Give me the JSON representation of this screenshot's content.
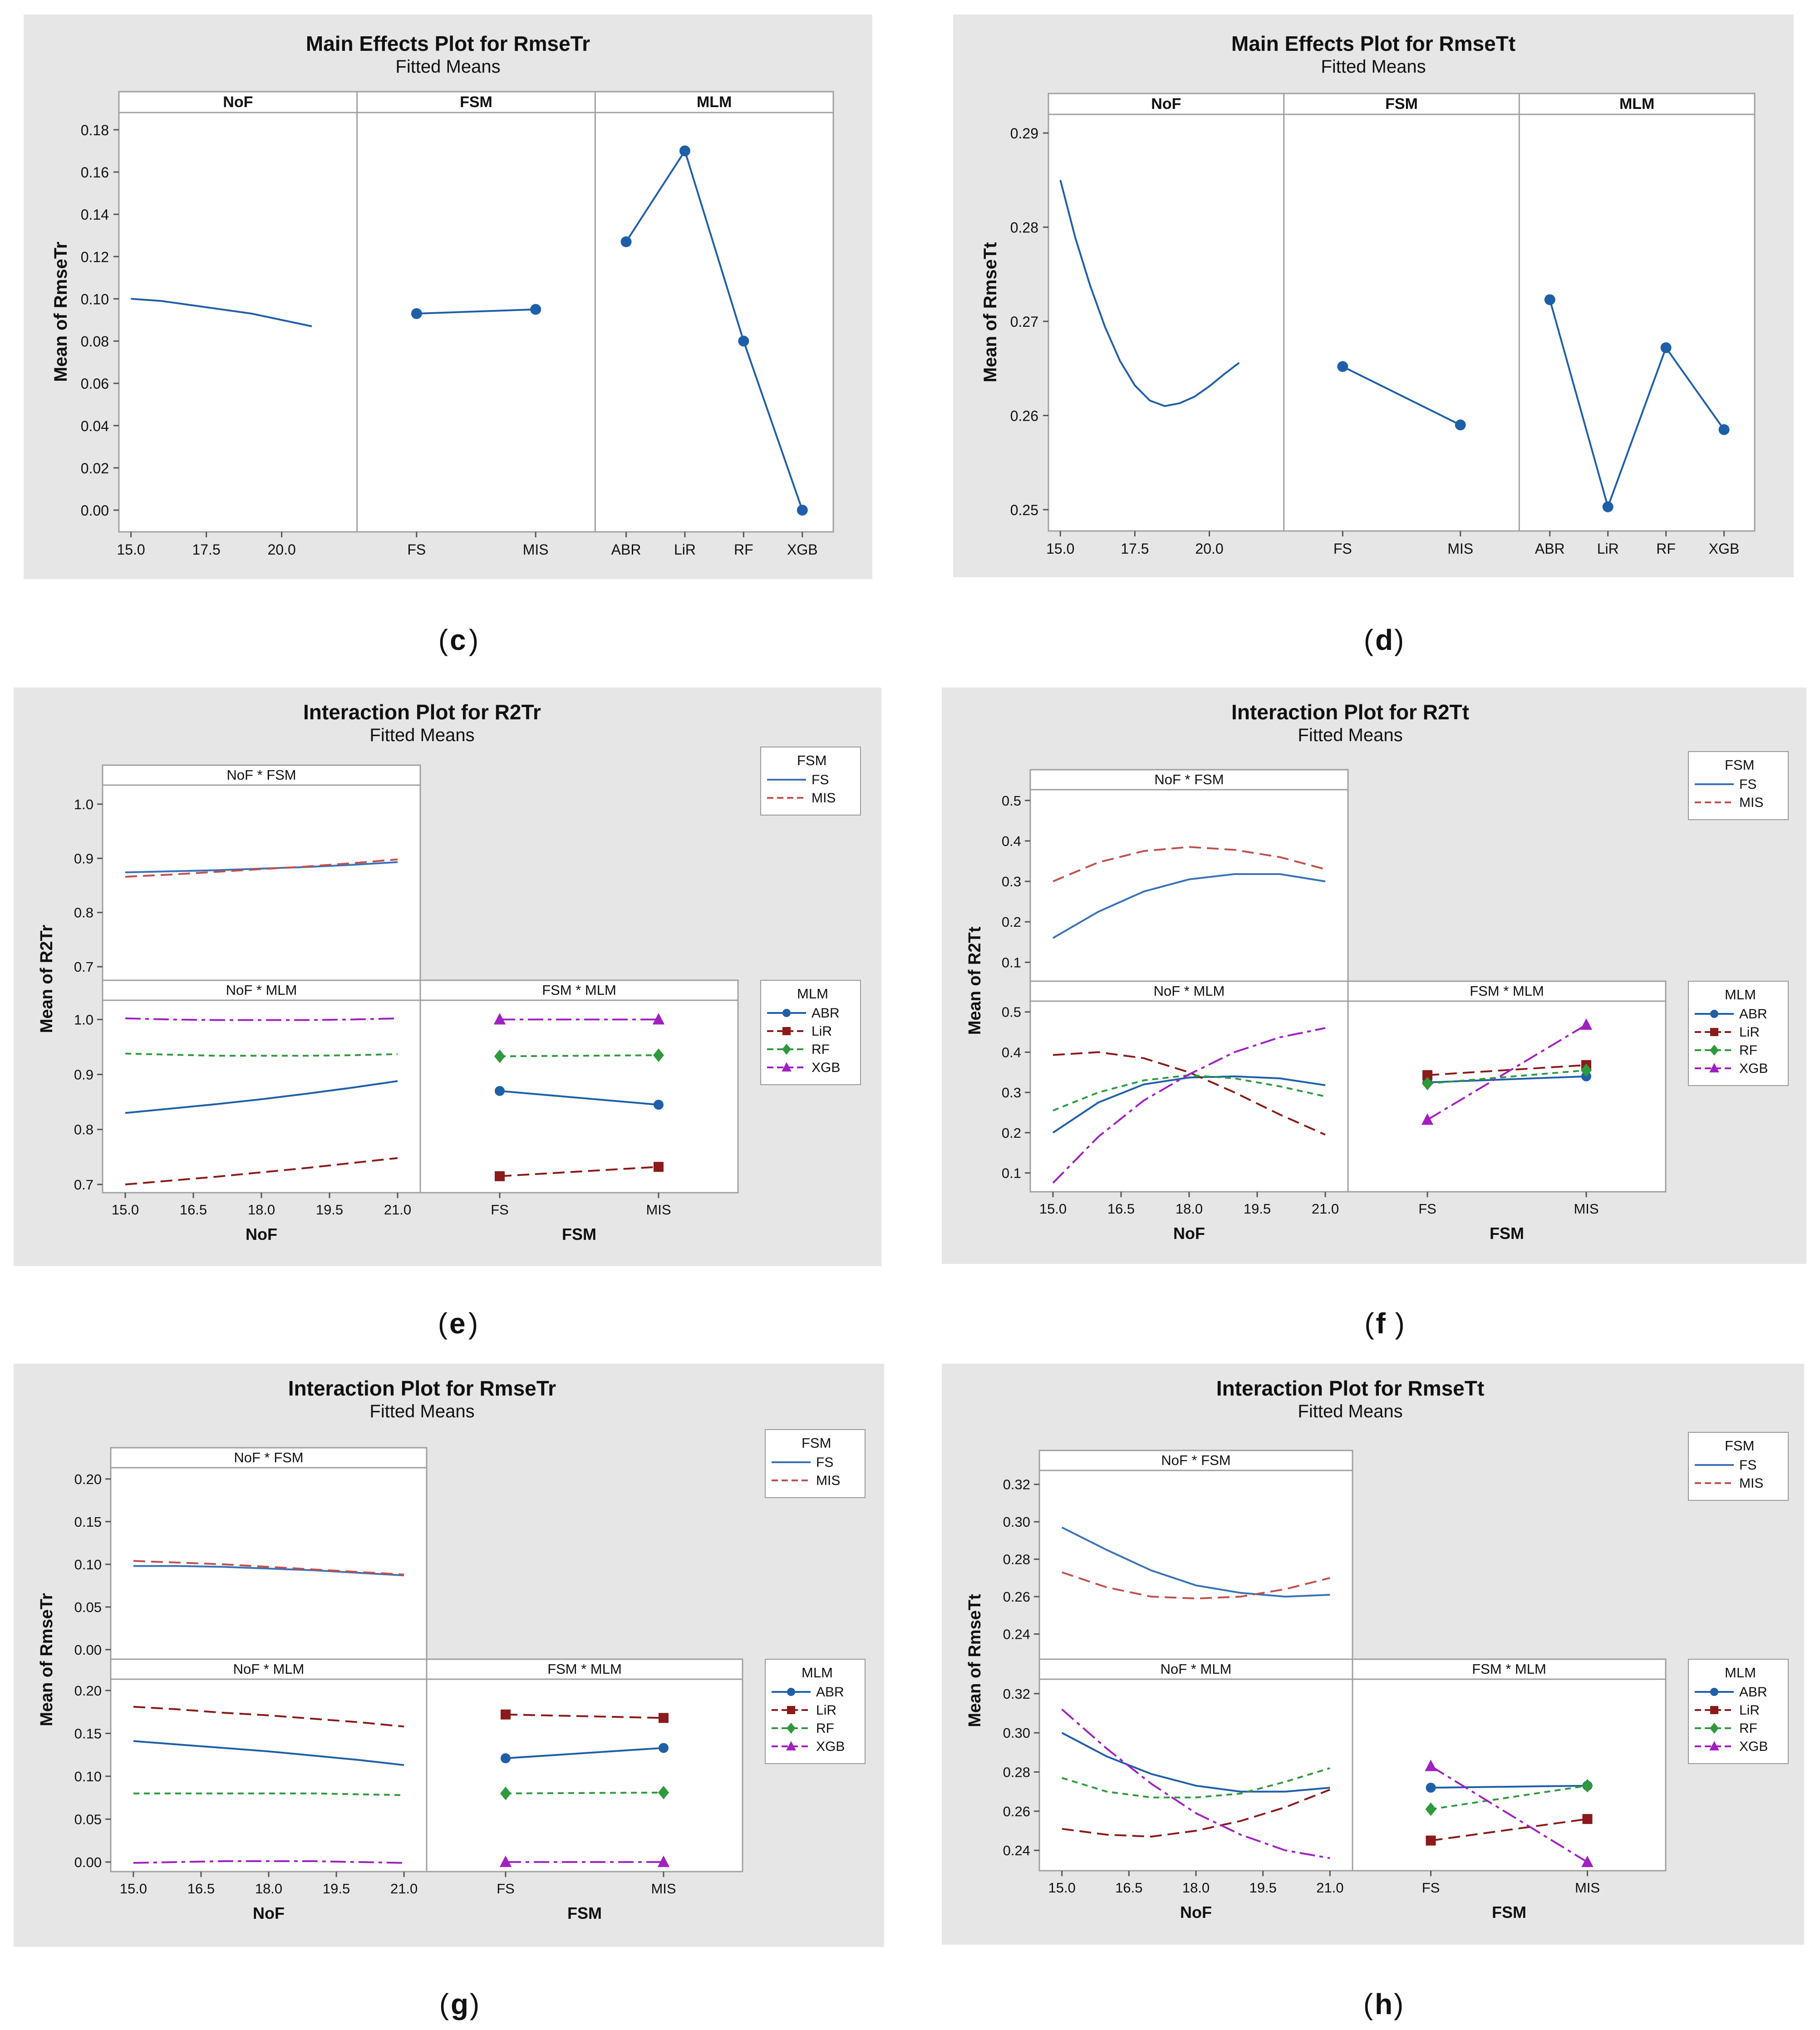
{
  "page": {
    "theme": {
      "background": "#e6e6e6",
      "plot_bg": "#ffffff",
      "frame": "#a0a0a0",
      "FS": "#3a72b8",
      "MIS": "#c0504d",
      "ABR": "#1f5fa8",
      "LiR": "#8b1a1a",
      "RF": "#2e9a3c",
      "XGB": "#a020c0",
      "main": "#1f5fa8"
    }
  },
  "chart_data": [
    {
      "id": "c",
      "type": "line",
      "kind": "main_effects",
      "title": "Main Effects Plot for RmseTr",
      "subtitle": "Fitted Means",
      "ylabel": "Mean of RmseTr",
      "ylim": [
        -0.006,
        0.186
      ],
      "yticks": [
        "0.00",
        "0.02",
        "0.04",
        "0.06",
        "0.08",
        "0.10",
        "0.12",
        "0.14",
        "0.16",
        "0.18"
      ],
      "caption_pre": "(",
      "caption": "c",
      "caption_post": ")",
      "panels": [
        {
          "label": "NoF",
          "continuous": true,
          "xlim": [
            14.6,
            22.5
          ],
          "xticks": [
            "15.0",
            "17.5",
            "20.0"
          ],
          "x": [
            15.0,
            16.0,
            17.0,
            18.0,
            19.0,
            20.0,
            21.0
          ],
          "y": [
            0.1,
            0.099,
            0.097,
            0.095,
            0.093,
            0.09,
            0.087
          ]
        },
        {
          "label": "FSM",
          "categories": [
            "FS",
            "MIS"
          ],
          "values": [
            0.093,
            0.095
          ]
        },
        {
          "label": "MLM",
          "categories": [
            "ABR",
            "LiR",
            "RF",
            "XGB"
          ],
          "values": [
            0.127,
            0.17,
            0.08,
            0.0
          ]
        }
      ]
    },
    {
      "id": "d",
      "type": "line",
      "kind": "main_effects",
      "title": "Main Effects Plot for RmseTt",
      "subtitle": "Fitted Means",
      "ylabel": "Mean of RmseTt",
      "ylim": [
        0.2487,
        0.2915
      ],
      "yticks": [
        "0.25",
        "0.26",
        "0.27",
        "0.28",
        "0.29"
      ],
      "caption_pre": "(",
      "caption": "d",
      "caption_post": ")",
      "panels": [
        {
          "label": "NoF",
          "continuous": true,
          "xlim": [
            14.6,
            22.5
          ],
          "xticks": [
            "15.0",
            "17.5",
            "20.0"
          ],
          "x": [
            15.0,
            15.5,
            16.0,
            16.5,
            17.0,
            17.5,
            18.0,
            18.5,
            19.0,
            19.5,
            20.0,
            20.5,
            21.0
          ],
          "y": [
            0.285,
            0.2789,
            0.2738,
            0.2694,
            0.2658,
            0.2632,
            0.2616,
            0.261,
            0.2613,
            0.262,
            0.2631,
            0.2644,
            0.2656
          ]
        },
        {
          "label": "FSM",
          "categories": [
            "FS",
            "MIS"
          ],
          "values": [
            0.2652,
            0.259
          ]
        },
        {
          "label": "MLM",
          "categories": [
            "ABR",
            "LiR",
            "RF",
            "XGB"
          ],
          "values": [
            0.2723,
            0.2503,
            0.2672,
            0.2585
          ]
        }
      ]
    },
    {
      "id": "e",
      "type": "line",
      "kind": "interaction",
      "title": "Interaction Plot for R2Tr",
      "subtitle": "Fitted Means",
      "ylabel": "Mean of R2Tr",
      "caption_pre": "(",
      "caption": "e",
      "caption_post": ")",
      "top": {
        "title": "NoF * FSM",
        "ylim": [
          0.68,
          1.03
        ],
        "yticks": [
          "0.7",
          "0.8",
          "0.9",
          "1.0"
        ],
        "ytickvals": [
          0.7,
          0.8,
          0.9,
          1.0
        ],
        "x": [
          15,
          16,
          17,
          18,
          19,
          20,
          21
        ],
        "series": [
          {
            "name": "FS",
            "values": [
              0.874,
              0.876,
              0.878,
              0.881,
              0.884,
              0.888,
              0.893
            ]
          },
          {
            "name": "MIS",
            "values": [
              0.866,
              0.87,
              0.875,
              0.88,
              0.885,
              0.891,
              0.898
            ]
          }
        ]
      },
      "bl": {
        "title": "NoF * MLM",
        "ylim": [
          0.69,
          1.03
        ],
        "yticks": [
          "0.7",
          "0.8",
          "0.9",
          "1.0"
        ],
        "ytickvals": [
          0.7,
          0.8,
          0.9,
          1.0
        ],
        "x": [
          15,
          16,
          17,
          18,
          19,
          20,
          21
        ],
        "series": [
          {
            "name": "ABR",
            "values": [
              0.83,
              0.838,
              0.846,
              0.855,
              0.865,
              0.876,
              0.888
            ]
          },
          {
            "name": "LiR",
            "values": [
              0.7,
              0.707,
              0.714,
              0.722,
              0.73,
              0.739,
              0.748
            ]
          },
          {
            "name": "RF",
            "values": [
              0.938,
              0.936,
              0.934,
              0.934,
              0.934,
              0.935,
              0.937
            ]
          },
          {
            "name": "XGB",
            "values": [
              1.002,
              1.0,
              0.999,
              0.999,
              0.999,
              1.0,
              1.002
            ]
          }
        ]
      },
      "br": {
        "title": "FSM * MLM",
        "ylim": [
          0.69,
          1.03
        ],
        "categories": [
          "FS",
          "MIS"
        ],
        "series": [
          {
            "name": "ABR",
            "values": [
              0.87,
              0.845
            ]
          },
          {
            "name": "LiR",
            "values": [
              0.715,
              0.732
            ]
          },
          {
            "name": "RF",
            "values": [
              0.933,
              0.935
            ]
          },
          {
            "name": "XGB",
            "values": [
              1.0,
              1.0
            ]
          }
        ]
      },
      "xaxis": {
        "noftitle": "NoF",
        "fsmtitle": "FSM",
        "xlim": [
          14.8,
          21.2
        ],
        "xticks": [
          "15.0",
          "16.5",
          "18.0",
          "19.5",
          "21.0"
        ],
        "xtickvals": [
          15.0,
          16.5,
          18.0,
          19.5,
          21.0
        ]
      },
      "legend_fsm": {
        "title": "FSM",
        "items": [
          "FS",
          "MIS"
        ]
      },
      "legend_mlm": {
        "title": "MLM",
        "items": [
          "ABR",
          "LiR",
          "RF",
          "XGB"
        ]
      }
    },
    {
      "id": "f",
      "type": "line",
      "kind": "interaction",
      "title": "Interaction Plot for R2Tt",
      "subtitle": "Fitted Means",
      "ylabel": "Mean of R2Tt",
      "caption_pre": "(",
      "caption": "f",
      "caption_post": ")",
      "top": {
        "title": "NoF * FSM",
        "ylim": [
          0.06,
          0.52
        ],
        "yticks": [
          "0.1",
          "0.2",
          "0.3",
          "0.4",
          "0.5"
        ],
        "ytickvals": [
          0.1,
          0.2,
          0.3,
          0.4,
          0.5
        ],
        "x": [
          15,
          16,
          17,
          18,
          19,
          20,
          21
        ],
        "series": [
          {
            "name": "FS",
            "values": [
              0.16,
              0.225,
              0.275,
              0.305,
              0.318,
              0.318,
              0.3
            ]
          },
          {
            "name": "MIS",
            "values": [
              0.3,
              0.347,
              0.375,
              0.385,
              0.378,
              0.36,
              0.33
            ]
          }
        ]
      },
      "bl": {
        "title": "NoF * MLM",
        "ylim": [
          0.06,
          0.52
        ],
        "yticks": [
          "0.1",
          "0.2",
          "0.3",
          "0.4",
          "0.5"
        ],
        "ytickvals": [
          0.1,
          0.2,
          0.3,
          0.4,
          0.5
        ],
        "x": [
          15,
          16,
          17,
          18,
          19,
          20,
          21
        ],
        "series": [
          {
            "name": "ABR",
            "values": [
              0.2,
              0.275,
              0.32,
              0.337,
              0.34,
              0.335,
              0.318
            ]
          },
          {
            "name": "LiR",
            "values": [
              0.393,
              0.4,
              0.385,
              0.35,
              0.3,
              0.245,
              0.195
            ]
          },
          {
            "name": "RF",
            "values": [
              0.255,
              0.3,
              0.33,
              0.343,
              0.335,
              0.315,
              0.29
            ]
          },
          {
            "name": "XGB",
            "values": [
              0.075,
              0.19,
              0.28,
              0.345,
              0.4,
              0.437,
              0.46
            ]
          }
        ]
      },
      "br": {
        "title": "FSM * MLM",
        "ylim": [
          0.06,
          0.52
        ],
        "categories": [
          "FS",
          "MIS"
        ],
        "series": [
          {
            "name": "ABR",
            "values": [
              0.325,
              0.34
            ]
          },
          {
            "name": "LiR",
            "values": [
              0.343,
              0.368
            ]
          },
          {
            "name": "RF",
            "values": [
              0.322,
              0.355
            ]
          },
          {
            "name": "XGB",
            "values": [
              0.232,
              0.468
            ]
          }
        ]
      },
      "xaxis": {
        "noftitle": "NoF",
        "fsmtitle": "FSM",
        "xlim": [
          14.8,
          21.2
        ],
        "xticks": [
          "15.0",
          "16.5",
          "18.0",
          "19.5",
          "21.0"
        ],
        "xtickvals": [
          15.0,
          16.5,
          18.0,
          19.5,
          21.0
        ]
      },
      "legend_fsm": {
        "title": "FSM",
        "items": [
          "FS",
          "MIS"
        ]
      },
      "legend_mlm": {
        "title": "MLM",
        "items": [
          "ABR",
          "LiR",
          "RF",
          "XGB"
        ]
      }
    },
    {
      "id": "g",
      "type": "line",
      "kind": "interaction",
      "title": "Interaction Plot for RmseTr",
      "subtitle": "Fitted Means",
      "ylabel": "Mean of RmseTr",
      "caption_pre": "(",
      "caption": "g",
      "caption_post": ")",
      "top": {
        "title": "NoF * FSM",
        "ylim": [
          -0.008,
          0.21
        ],
        "yticks": [
          "0.00",
          "0.05",
          "0.10",
          "0.15",
          "0.20"
        ],
        "ytickvals": [
          0,
          0.05,
          0.1,
          0.15,
          0.2
        ],
        "x": [
          15,
          16,
          17,
          18,
          19,
          20,
          21
        ],
        "series": [
          {
            "name": "FS",
            "values": [
              0.098,
              0.098,
              0.097,
              0.095,
              0.093,
              0.09,
              0.087
            ]
          },
          {
            "name": "MIS",
            "values": [
              0.104,
              0.102,
              0.1,
              0.097,
              0.094,
              0.091,
              0.088
            ]
          }
        ]
      },
      "bl": {
        "title": "NoF * MLM",
        "ylim": [
          -0.008,
          0.21
        ],
        "yticks": [
          "0.00",
          "0.05",
          "0.10",
          "0.15",
          "0.20"
        ],
        "ytickvals": [
          0,
          0.05,
          0.1,
          0.15,
          0.2
        ],
        "x": [
          15,
          16,
          17,
          18,
          19,
          20,
          21
        ],
        "series": [
          {
            "name": "ABR",
            "values": [
              0.141,
              0.137,
              0.133,
              0.129,
              0.124,
              0.119,
              0.113
            ]
          },
          {
            "name": "LiR",
            "values": [
              0.181,
              0.178,
              0.174,
              0.171,
              0.167,
              0.163,
              0.158
            ]
          },
          {
            "name": "RF",
            "values": [
              0.08,
              0.08,
              0.08,
              0.08,
              0.08,
              0.079,
              0.078
            ]
          },
          {
            "name": "XGB",
            "values": [
              -0.001,
              0.0,
              0.001,
              0.001,
              0.001,
              0.0,
              -0.001
            ]
          }
        ]
      },
      "br": {
        "title": "FSM * MLM",
        "ylim": [
          -0.008,
          0.21
        ],
        "categories": [
          "FS",
          "MIS"
        ],
        "series": [
          {
            "name": "ABR",
            "values": [
              0.121,
              0.133
            ]
          },
          {
            "name": "LiR",
            "values": [
              0.172,
              0.168
            ]
          },
          {
            "name": "RF",
            "values": [
              0.08,
              0.081
            ]
          },
          {
            "name": "XGB",
            "values": [
              0.0,
              0.0
            ]
          }
        ]
      },
      "xaxis": {
        "noftitle": "NoF",
        "fsmtitle": "FSM",
        "xlim": [
          14.8,
          21.2
        ],
        "xticks": [
          "15.0",
          "16.5",
          "18.0",
          "19.5",
          "21.0"
        ],
        "xtickvals": [
          15.0,
          16.5,
          18.0,
          19.5,
          21.0
        ]
      },
      "legend_fsm": {
        "title": "FSM",
        "items": [
          "FS",
          "MIS"
        ]
      },
      "legend_mlm": {
        "title": "MLM",
        "items": [
          "ABR",
          "LiR",
          "RF",
          "XGB"
        ]
      }
    },
    {
      "id": "h",
      "type": "line",
      "kind": "interaction",
      "title": "Interaction Plot for RmseTt",
      "subtitle": "Fitted Means",
      "ylabel": "Mean of RmseTt",
      "caption_pre": "(",
      "caption": "h",
      "caption_post": ")",
      "top": {
        "title": "NoF * FSM",
        "ylim": [
          0.228,
          0.326
        ],
        "yticks": [
          "0.24",
          "0.26",
          "0.28",
          "0.30",
          "0.32"
        ],
        "ytickvals": [
          0.24,
          0.26,
          0.28,
          0.3,
          0.32
        ],
        "x": [
          15,
          16,
          17,
          18,
          19,
          20,
          21
        ],
        "series": [
          {
            "name": "FS",
            "values": [
              0.297,
              0.285,
              0.274,
              0.266,
              0.262,
              0.26,
              0.261
            ]
          },
          {
            "name": "MIS",
            "values": [
              0.273,
              0.265,
              0.26,
              0.259,
              0.26,
              0.264,
              0.27
            ]
          }
        ]
      },
      "bl": {
        "title": "NoF * MLM",
        "ylim": [
          0.231,
          0.326
        ],
        "yticks": [
          "0.24",
          "0.26",
          "0.28",
          "0.30",
          "0.32"
        ],
        "ytickvals": [
          0.24,
          0.26,
          0.28,
          0.3,
          0.32
        ],
        "x": [
          15,
          16,
          17,
          18,
          19,
          20,
          21
        ],
        "series": [
          {
            "name": "ABR",
            "values": [
              0.3,
              0.288,
              0.279,
              0.273,
              0.27,
              0.27,
              0.272
            ]
          },
          {
            "name": "LiR",
            "values": [
              0.251,
              0.248,
              0.247,
              0.25,
              0.255,
              0.262,
              0.271
            ]
          },
          {
            "name": "RF",
            "values": [
              0.277,
              0.27,
              0.267,
              0.267,
              0.269,
              0.275,
              0.282
            ]
          },
          {
            "name": "XGB",
            "values": [
              0.312,
              0.292,
              0.274,
              0.259,
              0.248,
              0.24,
              0.236
            ]
          }
        ]
      },
      "br": {
        "title": "FSM * MLM",
        "ylim": [
          0.231,
          0.326
        ],
        "categories": [
          "FS",
          "MIS"
        ],
        "series": [
          {
            "name": "ABR",
            "values": [
              0.272,
              0.273
            ]
          },
          {
            "name": "LiR",
            "values": [
              0.245,
              0.256
            ]
          },
          {
            "name": "RF",
            "values": [
              0.261,
              0.273
            ]
          },
          {
            "name": "XGB",
            "values": [
              0.283,
              0.234
            ]
          }
        ]
      },
      "xaxis": {
        "noftitle": "NoF",
        "fsmtitle": "FSM",
        "xlim": [
          14.8,
          21.2
        ],
        "xticks": [
          "15.0",
          "16.5",
          "18.0",
          "19.5",
          "21.0"
        ],
        "xtickvals": [
          15.0,
          16.5,
          18.0,
          19.5,
          21.0
        ]
      },
      "legend_fsm": {
        "title": "FSM",
        "items": [
          "FS",
          "MIS"
        ]
      },
      "legend_mlm": {
        "title": "MLM",
        "items": [
          "ABR",
          "LiR",
          "RF",
          "XGB"
        ]
      }
    }
  ]
}
